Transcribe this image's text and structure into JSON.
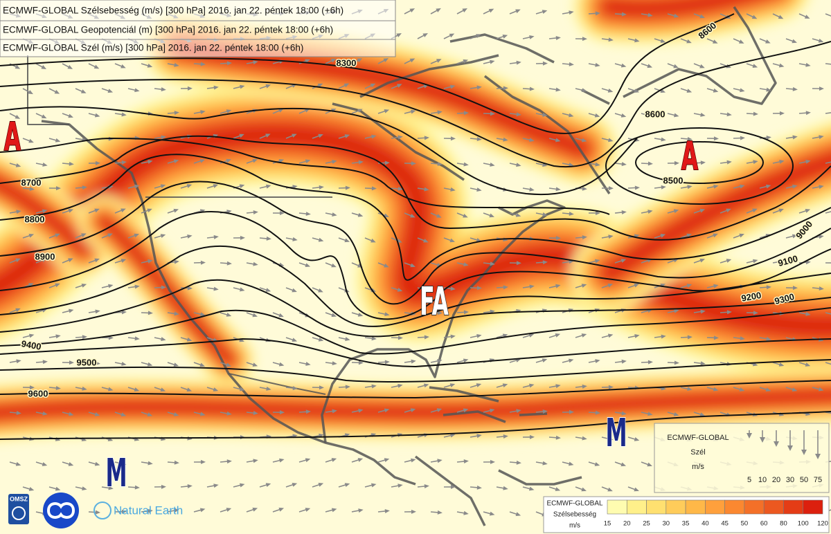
{
  "header": {
    "lines": [
      "ECMWF-GLOBAL Szélsebesség (m/s) [300 hPa] 2016. jan 22. péntek 18:00 (+6h)",
      "ECMWF-GLOBAL Geopotenciál (m) [300 hPa] 2016. jan 22. péntek 18:00 (+6h)",
      "ECMWF-GLOBAL Szél (m/s) [300 hPa] 2016. jan 22. péntek 18:00 (+6h)"
    ]
  },
  "map": {
    "contour_labels": [
      8300,
      8600,
      8600,
      8700,
      8800,
      8900,
      8500,
      9000,
      9100,
      9200,
      9300,
      9400,
      9500,
      9600
    ],
    "pressure_labels": [
      "A",
      "A",
      "FA",
      "M",
      "M"
    ]
  },
  "wind_legend": {
    "title": "ECMWF-GLOBAL",
    "variable": "Szél",
    "unit": "m/s",
    "speeds": [
      5,
      10,
      20,
      30,
      50,
      75
    ]
  },
  "color_legend": {
    "title": "ECMWF-GLOBAL",
    "variable": "Szélsebesség",
    "unit": "m/s",
    "labels": [
      15,
      20,
      25,
      30,
      35,
      40,
      45,
      50,
      60,
      80,
      100,
      120
    ],
    "colors": [
      "#fffcb0",
      "#fff08a",
      "#ffe070",
      "#ffcc5a",
      "#ffb848",
      "#ffa03c",
      "#fb8830",
      "#f47028",
      "#ec5820",
      "#e43c16",
      "#dc200e"
    ]
  },
  "logos": [
    "OMSZ",
    "Natural Earth"
  ]
}
